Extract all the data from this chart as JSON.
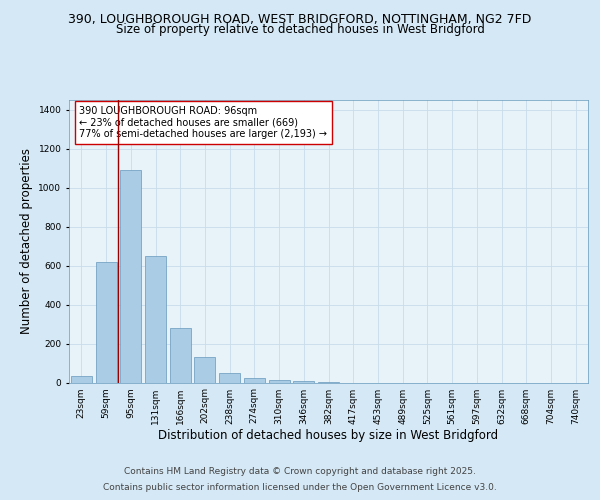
{
  "title_line1": "390, LOUGHBOROUGH ROAD, WEST BRIDGFORD, NOTTINGHAM, NG2 7FD",
  "title_line2": "Size of property relative to detached houses in West Bridgford",
  "xlabel": "Distribution of detached houses by size in West Bridgford",
  "ylabel": "Number of detached properties",
  "categories": [
    "23sqm",
    "59sqm",
    "95sqm",
    "131sqm",
    "166sqm",
    "202sqm",
    "238sqm",
    "274sqm",
    "310sqm",
    "346sqm",
    "382sqm",
    "417sqm",
    "453sqm",
    "489sqm",
    "525sqm",
    "561sqm",
    "597sqm",
    "632sqm",
    "668sqm",
    "704sqm",
    "740sqm"
  ],
  "bar_values": [
    35,
    620,
    1090,
    650,
    280,
    130,
    50,
    25,
    15,
    10,
    5,
    0,
    0,
    0,
    0,
    0,
    0,
    0,
    0,
    0,
    0
  ],
  "bar_color": "#aacce4",
  "bar_edge_color": "#6699bb",
  "grid_color": "#c8dcea",
  "background_color": "#d5e8f5",
  "plot_bg_color": "#e8f2f9",
  "ylim": [
    0,
    1450
  ],
  "yticks": [
    0,
    200,
    400,
    600,
    800,
    1000,
    1200,
    1400
  ],
  "property_line_x": 2,
  "property_line_color": "#990000",
  "annotation_text": "390 LOUGHBOROUGH ROAD: 96sqm\n← 23% of detached houses are smaller (669)\n77% of semi-detached houses are larger (2,193) →",
  "annotation_box_color": "#ffffff",
  "annotation_box_edge": "#cc0000",
  "footer_line1": "Contains HM Land Registry data © Crown copyright and database right 2025.",
  "footer_line2": "Contains public sector information licensed under the Open Government Licence v3.0.",
  "title_fontsize": 9,
  "subtitle_fontsize": 8.5,
  "axis_label_fontsize": 8.5,
  "tick_fontsize": 6.5,
  "annotation_fontsize": 7,
  "footer_fontsize": 6.5
}
